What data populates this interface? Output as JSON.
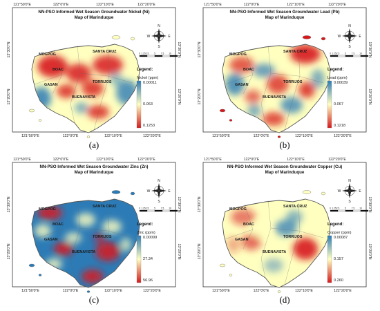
{
  "colors": {
    "low": "#2c7bb6",
    "mid": "#ffffbf",
    "high": "#d7191c",
    "land_outline": "#555555"
  },
  "common": {
    "coords_top": [
      "121°50'0\"E",
      "122°0'0\"E",
      "122°10'0\"E",
      "122°20'0\"E"
    ],
    "coords_bottom": [
      "121°50'0\"E",
      "122°0'0\"E",
      "122°10'0\"E",
      "122°20'0\"E"
    ],
    "lat_upper": "13°30'0\"N",
    "lat_lower": "13°20'0\"N",
    "legend_heading": "Legend:",
    "compass": {
      "n": "N",
      "s": "S",
      "e": "E",
      "w": "W"
    },
    "scale": [
      "0",
      "1.25",
      "2.5",
      "5",
      "7.5",
      "10"
    ],
    "towns": [
      "MOGPOG",
      "SANTA CRUZ",
      "BOAC",
      "TORRIJOS",
      "GASAN",
      "BUENAVISTA"
    ]
  },
  "panels": [
    {
      "title": "NN-PSO Informed Wet Season Groundwater Nickel (Ni)",
      "subtitle": "Map of Marinduque",
      "legend_label": "Nickel (ppm)",
      "legend_values": [
        "0.00011",
        "0.063",
        "0.1253"
      ],
      "caption": "(a)",
      "coords_bottom": [
        "121°50'0\"E",
        "122°0'0\"E",
        "122°10'0\"E",
        "122°20'0\"E"
      ]
    },
    {
      "title": "NN-PSO Informed Wet Season Groundwater Lead (Pb)",
      "subtitle": "Map of Marinduque",
      "legend_label": "Lead (ppm)",
      "legend_values": [
        "0.00039",
        "0.067",
        "0.1218"
      ],
      "caption": "(b)",
      "coords_bottom": [
        "121°50'0\"E",
        "122°0'0\"E",
        "122°10'0\"E",
        "122°20'0\"E"
      ]
    },
    {
      "title": "NN-PSO Informed Wet Season Groundwater Zinc (Zn)",
      "subtitle": "Map of Marinduque",
      "legend_label": "Zinc (ppm)",
      "legend_values": [
        "0.00099",
        "27.34",
        "56.96"
      ],
      "caption": "(c)",
      "coords_bottom": [
        "121°50'0\"E",
        "122°0'0\"E",
        "122°10'0\"E",
        "122°20'0\"E"
      ]
    },
    {
      "title": "NN-PSO Informed Wet Season Groundwater Copper (Cu)",
      "subtitle": "Map of Marinduque",
      "legend_label": "Copper (ppm)",
      "legend_values": [
        "0.00087",
        "0.157",
        "0.260"
      ],
      "caption": "(d)",
      "coords_bottom": [
        "121°50'0\"E",
        "122°0'0\"E",
        "122°10'0\"E",
        "122°20'0\"E"
      ]
    }
  ]
}
